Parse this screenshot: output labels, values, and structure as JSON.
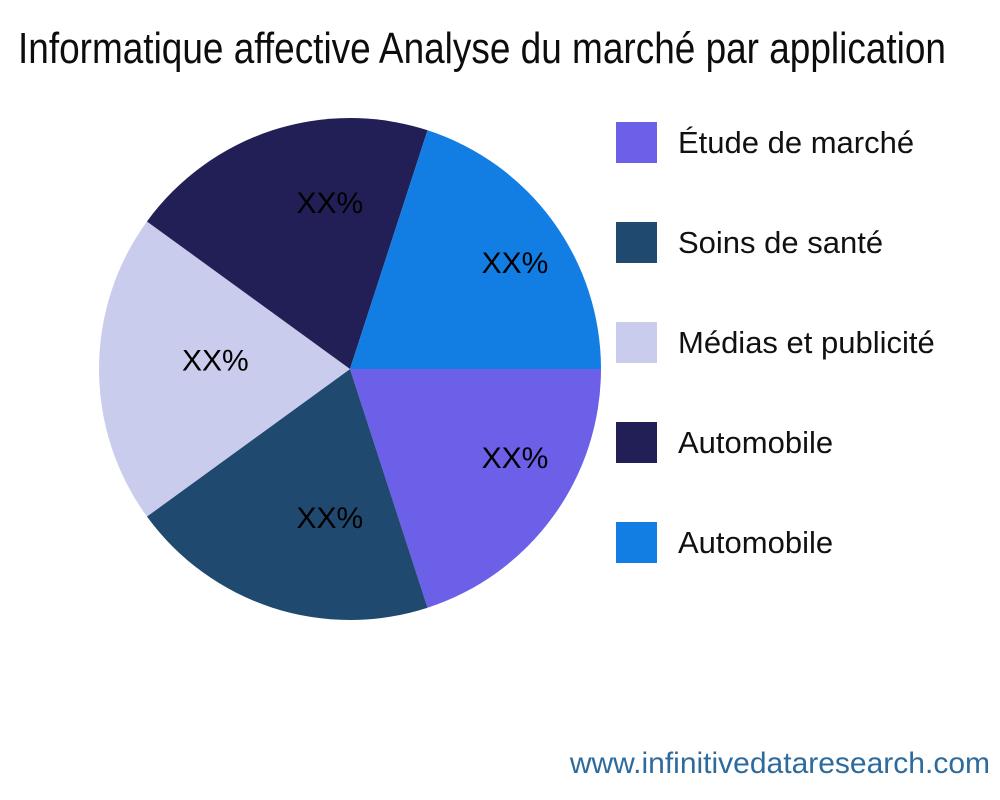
{
  "header": {
    "title": "Informatique affective Analyse du marché par application"
  },
  "chart_data": {
    "type": "pie",
    "title": "Informatique affective Analyse du marché par application",
    "categories": [
      "Étude de marché",
      "Soins de santé",
      "Médias et publicité",
      "Automobile",
      "Automobile"
    ],
    "values": [
      20,
      20,
      20,
      20,
      20
    ],
    "value_labels": [
      "XX%",
      "XX%",
      "XX%",
      "XX%",
      "XX%"
    ],
    "colors": [
      "#6C60E8",
      "#20496F",
      "#C9CCEC",
      "#221F56",
      "#127EE4"
    ],
    "start_angle_deg": 0,
    "direction": "clockwise",
    "legend_position": "right",
    "slice_label_color": "#000000",
    "background": "#ffffff"
  },
  "legend": {
    "items": [
      {
        "label": "Étude de marché",
        "color": "#6C60E8"
      },
      {
        "label": "Soins de santé",
        "color": "#20496F"
      },
      {
        "label": "Médias et publicité",
        "color": "#C9CCEC"
      },
      {
        "label": "Automobile",
        "color": "#221F56"
      },
      {
        "label": "Automobile",
        "color": "#127EE4"
      }
    ]
  },
  "footer": {
    "url": "www.infinitivedataresearch.com",
    "color": "#2E6B9D"
  }
}
